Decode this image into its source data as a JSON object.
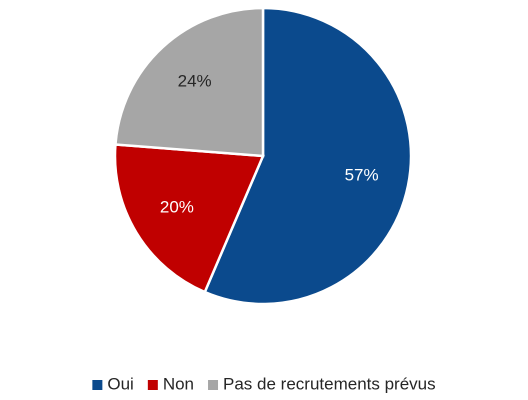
{
  "chart_data": {
    "type": "pie",
    "categories": [
      "Oui",
      "Non",
      "Pas de recrutements prévus"
    ],
    "values": [
      57,
      20,
      24
    ],
    "value_labels": [
      "57%",
      "20%",
      "24%"
    ],
    "colors": [
      "#0b4a8d",
      "#c00000",
      "#a6a6a6"
    ],
    "label_colors": [
      "#ffffff",
      "#ffffff",
      "#262626"
    ],
    "legend": "bottom"
  }
}
